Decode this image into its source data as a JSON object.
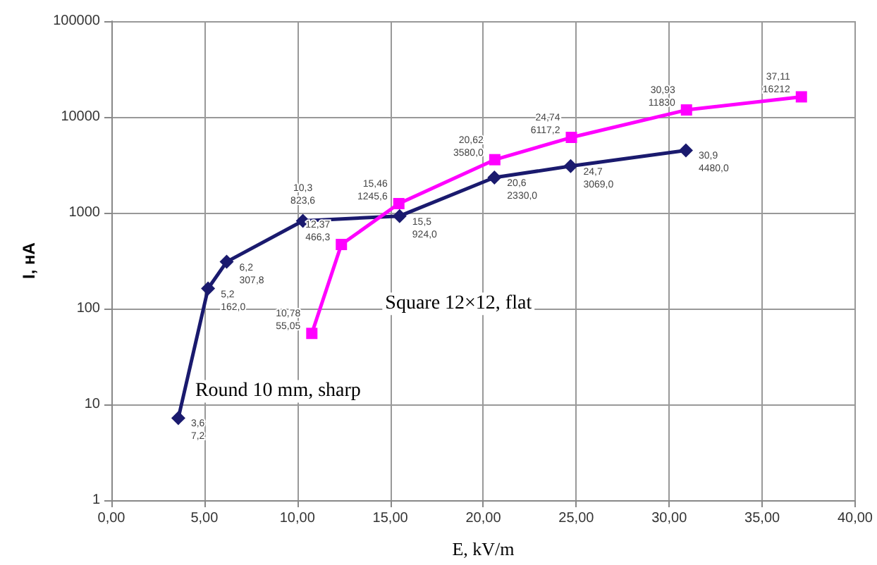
{
  "chart_data": {
    "type": "line",
    "xlabel": "E, kV/m",
    "ylabel": "I, нA",
    "log": "y",
    "grid": true,
    "legend": false,
    "line_style": "solid",
    "xlim": [
      0,
      40
    ],
    "xticks": [
      {
        "value": 0,
        "label": "0,00"
      },
      {
        "value": 5,
        "label": "5,00"
      },
      {
        "value": 10,
        "label": "10,00"
      },
      {
        "value": 15,
        "label": "15,00"
      },
      {
        "value": 20,
        "label": "20,00"
      },
      {
        "value": 25,
        "label": "25,00"
      },
      {
        "value": 30,
        "label": "30,00"
      },
      {
        "value": 35,
        "label": "35,00"
      },
      {
        "value": 40,
        "label": "40,00"
      }
    ],
    "ylim": [
      1,
      100000
    ],
    "yticks": [
      1,
      10,
      100,
      1000,
      10000,
      100000
    ],
    "series": [
      {
        "name": "Round 10 mm, sharp",
        "color": "#1a1a6e",
        "marker": "diamond",
        "x": [
          3.6,
          5.2,
          6.2,
          10.3,
          15.5,
          20.6,
          24.7,
          30.9
        ],
        "values": [
          7.2,
          162.0,
          307.8,
          823.6,
          924.0,
          2330.0,
          3069.0,
          4480.0
        ],
        "value_labels": [
          "3,6\n7,2",
          "5,2\n162,0",
          "6,2\n307,8",
          "10,3\n823,6",
          "15,5\n924,0",
          "20,6\n2330,0",
          "24,7\n3069,0",
          "30,9\n4480,0"
        ]
      },
      {
        "name": "Square 12×12, flat",
        "color": "#ff00ff",
        "marker": "square",
        "x": [
          10.78,
          12.37,
          15.46,
          20.62,
          24.74,
          30.93,
          37.11
        ],
        "values": [
          55.05,
          466.3,
          1245.6,
          3580.0,
          6117.2,
          11830,
          16212
        ],
        "value_labels": [
          "10,78\n55,05",
          "12,37\n466,3",
          "15,46\n1245,6",
          "20,62\n3580,0",
          "24,74\n6117,2",
          "30,93\n11830",
          "37,11\n16212"
        ]
      }
    ]
  }
}
